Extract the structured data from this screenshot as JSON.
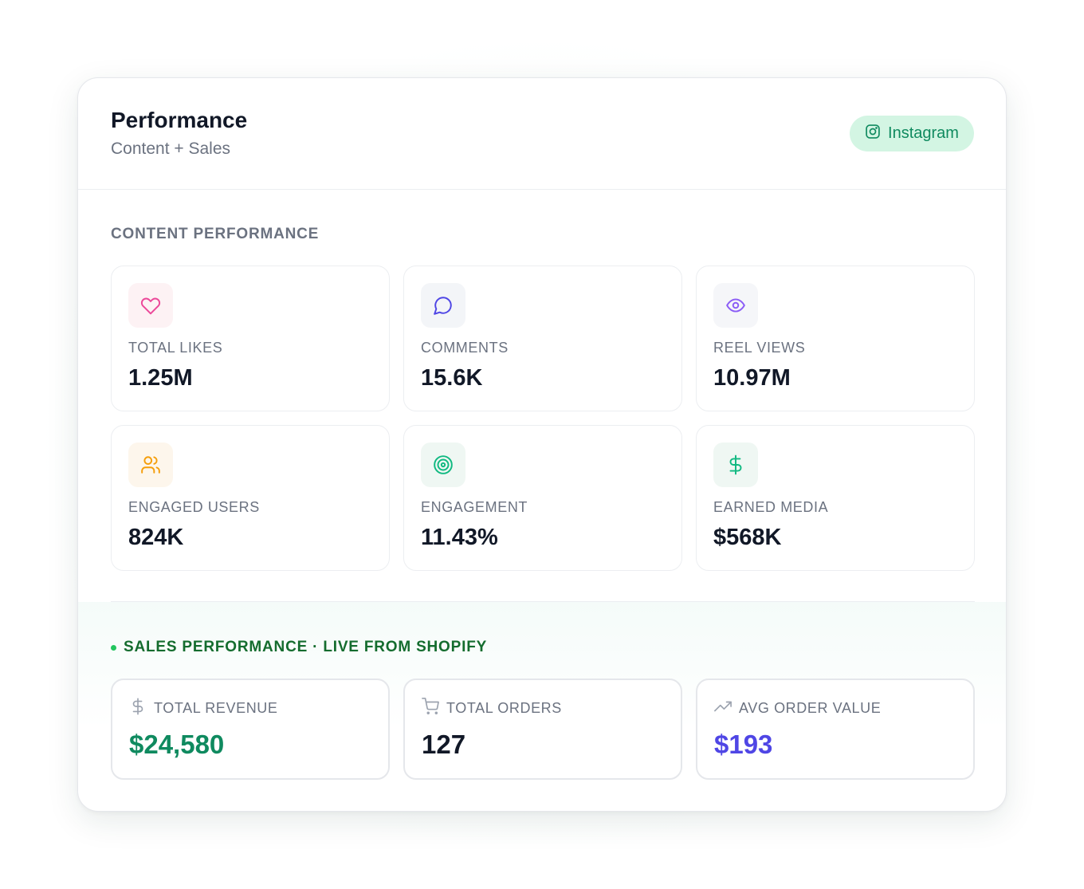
{
  "header": {
    "title": "Performance",
    "subtitle": "Content + Sales",
    "platform_badge": {
      "label": "Instagram",
      "icon": "instagram-icon",
      "color": "#0f8a5f",
      "background": "#d3f5e3"
    }
  },
  "content_performance": {
    "section_label": "CONTENT PERFORMANCE",
    "metrics": [
      {
        "label": "TOTAL LIKES",
        "value": "1.25M",
        "icon": "heart-icon",
        "icon_color": "#ec4899"
      },
      {
        "label": "COMMENTS",
        "value": "15.6K",
        "icon": "message-circle-icon",
        "icon_color": "#4f46e5"
      },
      {
        "label": "REEL VIEWS",
        "value": "10.97M",
        "icon": "eye-icon",
        "icon_color": "#8b5cf6"
      },
      {
        "label": "ENGAGED USERS",
        "value": "824K",
        "icon": "users-icon",
        "icon_color": "#f59e0b"
      },
      {
        "label": "ENGAGEMENT",
        "value": "11.43%",
        "icon": "target-icon",
        "icon_color": "#10b981"
      },
      {
        "label": "EARNED MEDIA",
        "value": "$568K",
        "icon": "dollar-icon",
        "icon_color": "#10b981"
      }
    ]
  },
  "sales_performance": {
    "section_label": "SALES PERFORMANCE · LIVE FROM SHOPIFY",
    "status_color": "#22c55e",
    "metrics": [
      {
        "label": "TOTAL REVENUE",
        "value": "$24,580",
        "icon": "dollar-icon",
        "value_color": "#0f8a5f"
      },
      {
        "label": "TOTAL ORDERS",
        "value": "127",
        "icon": "cart-icon",
        "value_color": "#111827"
      },
      {
        "label": "AVG ORDER VALUE",
        "value": "$193",
        "icon": "trending-up-icon",
        "value_color": "#4f46e5"
      }
    ]
  }
}
